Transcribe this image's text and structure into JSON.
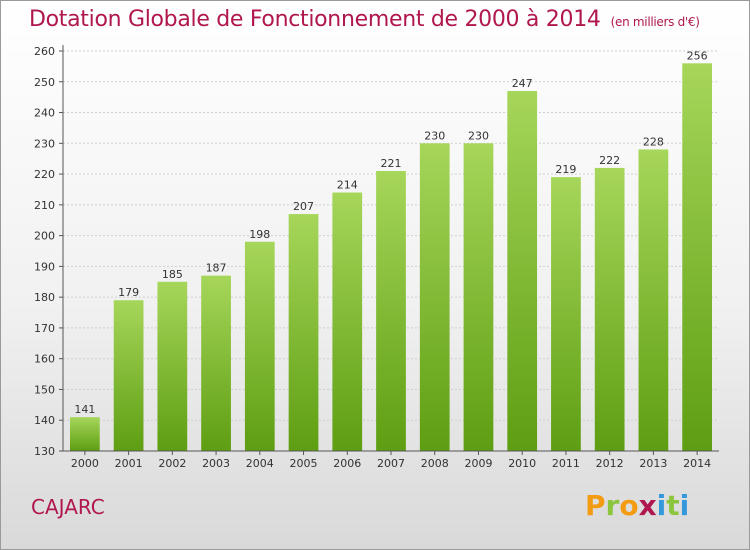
{
  "chart_data": {
    "type": "bar",
    "title": "Dotation Globale de Fonctionnement de 2000 à 2014",
    "subtitle": "(en milliers d'€)",
    "categories": [
      "2000",
      "2001",
      "2002",
      "2003",
      "2004",
      "2005",
      "2006",
      "2007",
      "2008",
      "2009",
      "2010",
      "2011",
      "2012",
      "2013",
      "2014"
    ],
    "values": [
      141,
      179,
      185,
      187,
      198,
      207,
      214,
      221,
      230,
      230,
      247,
      219,
      222,
      228,
      256
    ],
    "ylim": [
      130,
      260
    ],
    "yticks": [
      130,
      140,
      150,
      160,
      170,
      180,
      190,
      200,
      210,
      220,
      230,
      240,
      250,
      260
    ],
    "grid": true,
    "bar_color": "#8cc63f",
    "xlabel": "",
    "ylabel": ""
  },
  "footer": {
    "commune": "CAJARC",
    "logo": "Proxiti"
  },
  "colors": {
    "title": "#b0174f",
    "bar_top": "#a6d65a",
    "bar_bottom": "#5e9e12"
  }
}
